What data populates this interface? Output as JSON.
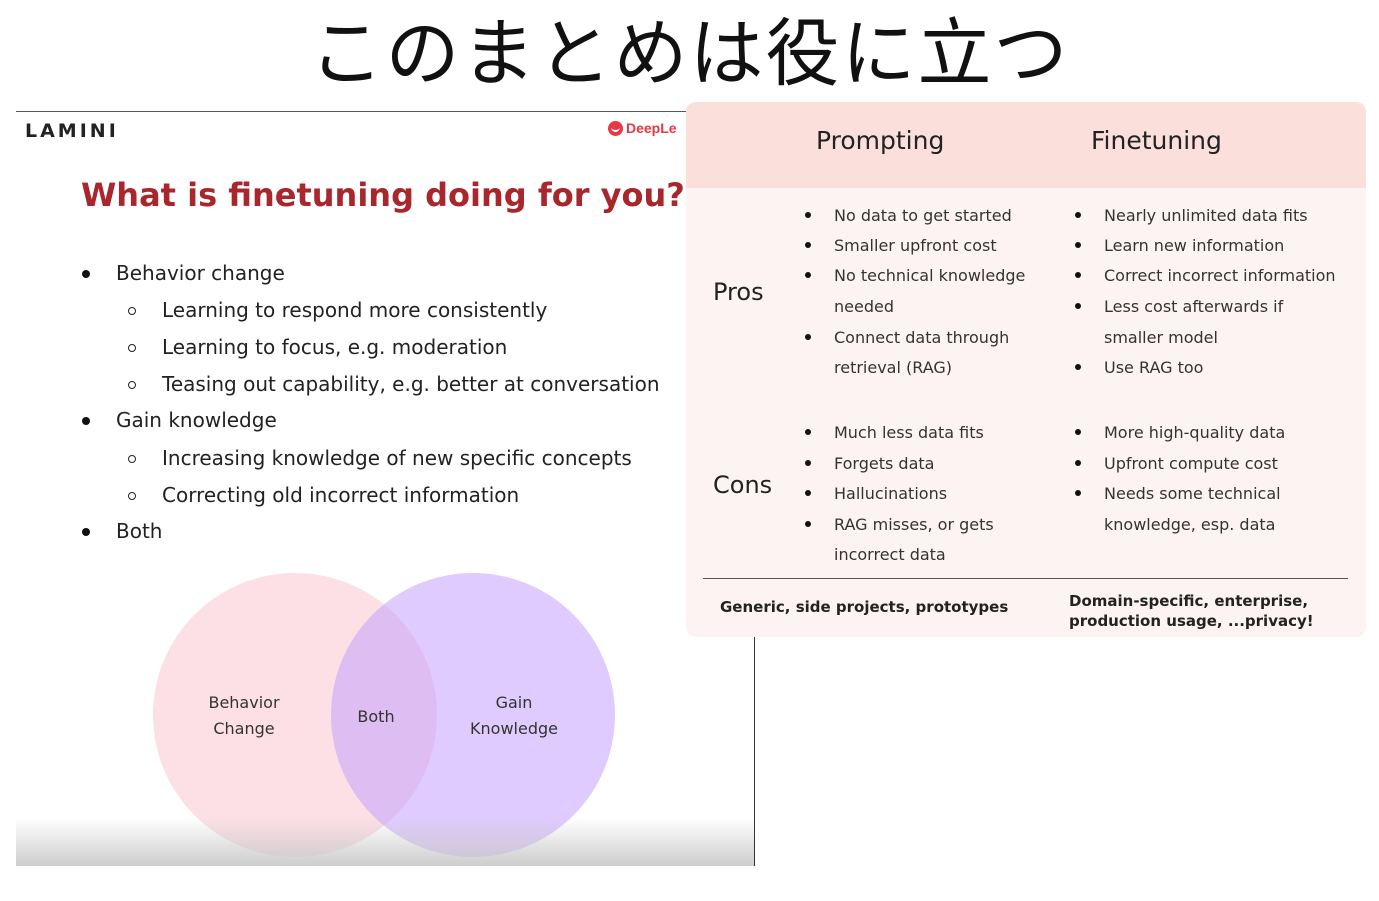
{
  "headline": "このまとめは役に立つ",
  "slide": {
    "brand": "LAMINI",
    "partner": "DeepLe",
    "title": "What is finetuning doing for you?",
    "bullets": [
      {
        "text": "Behavior change",
        "level": 1
      },
      {
        "text": "Learning to respond more consistently",
        "level": 2
      },
      {
        "text": "Learning to focus, e.g. moderation",
        "level": 2
      },
      {
        "text": "Teasing out capability, e.g. better at conversation",
        "level": 2
      },
      {
        "text": "Gain knowledge",
        "level": 1
      },
      {
        "text": "Increasing knowledge of new specific concepts",
        "level": 2
      },
      {
        "text": "Correcting old incorrect information",
        "level": 2
      },
      {
        "text": "Both",
        "level": 1
      }
    ],
    "venn": {
      "left_line1": "Behavior",
      "left_line2": "Change",
      "middle": "Both",
      "right_line1": "Gain",
      "right_line2": "Knowledge"
    }
  },
  "comparison": {
    "col_prompting": "Prompting",
    "col_finetuning": "Finetuning",
    "row_pros": "Pros",
    "row_cons": "Cons",
    "pros_prompting": [
      "No data to get started",
      "Smaller upfront cost",
      "No technical knowledge",
      "needed",
      "Connect data through",
      "retrieval (RAG)"
    ],
    "pros_finetuning": [
      "Nearly unlimited data fits",
      "Learn new information",
      "Correct incorrect information",
      "Less cost afterwards if",
      "smaller model",
      "Use RAG too"
    ],
    "cons_prompting": [
      "Much less data fits",
      "Forgets data",
      "Hallucinations",
      "RAG misses, or gets",
      "incorrect data"
    ],
    "cons_finetuning": [
      "More high-quality data",
      "Upfront compute cost",
      "Needs some technical",
      "knowledge, esp. data"
    ],
    "foot_prompting": "Generic, side projects, prototypes",
    "foot_finetuning_line1": "Domain-specific, enterprise,",
    "foot_finetuning_line2": "production usage, ...privacy!"
  }
}
